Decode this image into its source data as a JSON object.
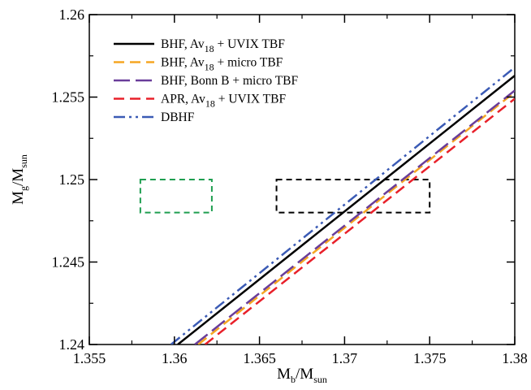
{
  "chart_data": {
    "type": "line",
    "xlabel": {
      "main": "M",
      "sub": "b",
      "rest": "/M",
      "sub2": "sun"
    },
    "ylabel": {
      "main": "M",
      "sub": "g",
      "rest": "/M",
      "sub2": "sun"
    },
    "xlim": [
      1.355,
      1.38
    ],
    "ylim": [
      1.24,
      1.26
    ],
    "x_ticks": [
      {
        "value": 1.355,
        "label": "1.355"
      },
      {
        "value": 1.36,
        "label": "1.36"
      },
      {
        "value": 1.365,
        "label": "1.365"
      },
      {
        "value": 1.37,
        "label": "1.37"
      },
      {
        "value": 1.375,
        "label": "1.375"
      },
      {
        "value": 1.38,
        "label": "1.38"
      }
    ],
    "y_ticks": [
      {
        "value": 1.24,
        "label": "1.24"
      },
      {
        "value": 1.245,
        "label": "1.245"
      },
      {
        "value": 1.25,
        "label": "1.25"
      },
      {
        "value": 1.255,
        "label": "1.255"
      },
      {
        "value": 1.26,
        "label": "1.26"
      }
    ],
    "grid": false,
    "legend_position": "top-left",
    "series": [
      {
        "name": "BHF, Av18 + UVIX TBF",
        "legend": {
          "a": "BHF, Av",
          "sub": "18",
          "b": " + UVIX TBF"
        },
        "color": "#000000",
        "dash": "solid",
        "x": [
          1.3602,
          1.38
        ],
        "y": [
          1.24,
          1.2563
        ]
      },
      {
        "name": "BHF, Av18 + micro TBF",
        "legend": {
          "a": "BHF, Av",
          "sub": "18",
          "b": " + micro TBF"
        },
        "color": "#f5a623",
        "dash": "dashed",
        "x": [
          1.3614,
          1.38
        ],
        "y": [
          1.24,
          1.2553
        ]
      },
      {
        "name": "BHF, Bonn B + micro TBF",
        "legend": {
          "a": "BHF, Bonn B + micro TBF",
          "sub": "",
          "b": ""
        },
        "color": "#6a3d9a",
        "dash": "longdash",
        "x": [
          1.3612,
          1.38
        ],
        "y": [
          1.24,
          1.2554
        ]
      },
      {
        "name": "APR, Av18 + UVIX TBF",
        "legend": {
          "a": "APR, Av",
          "sub": "18",
          "b": " + UVIX TBF"
        },
        "color": "#e8202a",
        "dash": "dashed",
        "x": [
          1.3618,
          1.38
        ],
        "y": [
          1.24,
          1.2549
        ]
      },
      {
        "name": "DBHF",
        "legend": {
          "a": "DBHF",
          "sub": "",
          "b": ""
        },
        "color": "#3b5bb5",
        "dash": "dashdotdot",
        "x": [
          1.3598,
          1.38
        ],
        "y": [
          1.24,
          1.2568
        ]
      }
    ],
    "boxes": [
      {
        "color": "#1e9e50",
        "x": [
          1.358,
          1.3622
        ],
        "y": [
          1.248,
          1.25
        ]
      },
      {
        "color": "#000000",
        "x": [
          1.366,
          1.375
        ],
        "y": [
          1.248,
          1.25
        ]
      }
    ]
  }
}
